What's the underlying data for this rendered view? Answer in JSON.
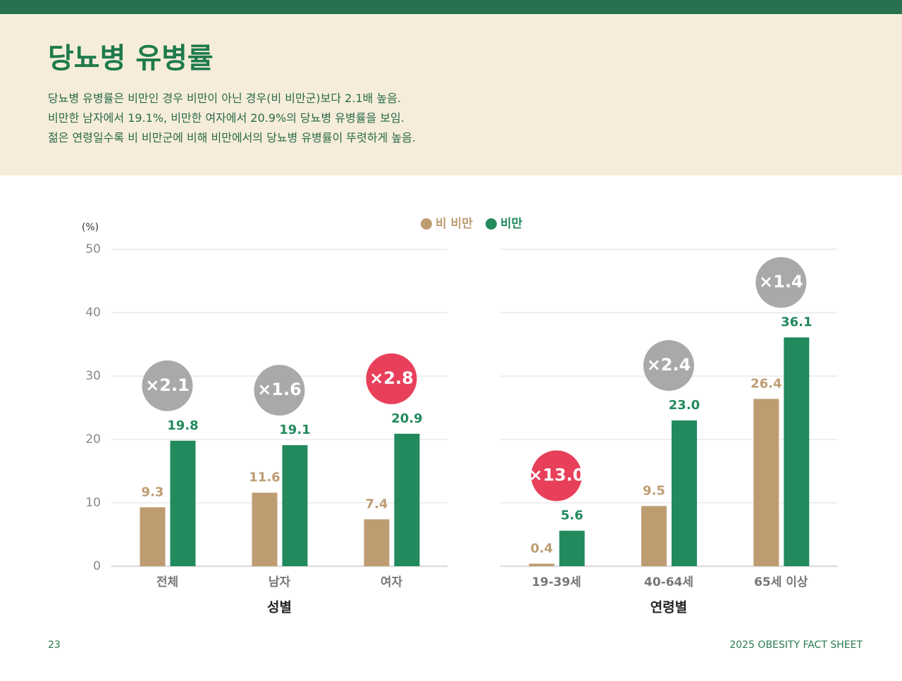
{
  "header": {
    "title": "당뇨병 유병률",
    "lines": [
      "당뇨병 유병률은 비만인 경우 비만이 아닌 경우(비 비만군)보다 2.1배 높음.",
      "비만한 남자에서 19.1%, 비만한 여자에서 20.9%의 당뇨병 유병률을 보임.",
      "젊은 연령일수록 비 비만군에 비해 비만에서의 당뇨병 유병률이 뚜렷하게 높음."
    ]
  },
  "chart_data": {
    "type": "bar",
    "ylabel": "(%)",
    "ylim": [
      0,
      50
    ],
    "yticks": [
      0,
      10,
      20,
      30,
      40,
      50
    ],
    "grid": true,
    "series": [
      {
        "name": "비 비만",
        "color": "#be9c72"
      },
      {
        "name": "비만",
        "color": "#228a5c"
      }
    ],
    "panels": [
      {
        "xlabel": "성별",
        "categories": [
          "전체",
          "남자",
          "여자"
        ],
        "series": [
          {
            "values": [
              9.3,
              11.6,
              7.4
            ]
          },
          {
            "values": [
              19.8,
              19.1,
              20.9
            ]
          }
        ],
        "ratios": [
          {
            "label": "×2.1",
            "color": "#a9a9a9"
          },
          {
            "label": "×1.6",
            "color": "#a9a9a9"
          },
          {
            "label": "×2.8",
            "color": "#e8405a"
          }
        ]
      },
      {
        "xlabel": "연령별",
        "categories": [
          "19-39세",
          "40-64세",
          "65세 이상"
        ],
        "series": [
          {
            "values": [
              0.4,
              9.5,
              26.4
            ]
          },
          {
            "values": [
              5.6,
              23,
              36.1
            ],
            "value_labels": [
              "5.6",
              "23.0",
              "36.1"
            ]
          }
        ],
        "ratios": [
          {
            "label": "×13.0",
            "color": "#e8405a"
          },
          {
            "label": "×2.4",
            "color": "#a9a9a9"
          },
          {
            "label": "×1.4",
            "color": "#a9a9a9"
          }
        ]
      }
    ]
  },
  "footer": {
    "page": "23",
    "source": "2025 OBESITY FACT SHEET"
  }
}
